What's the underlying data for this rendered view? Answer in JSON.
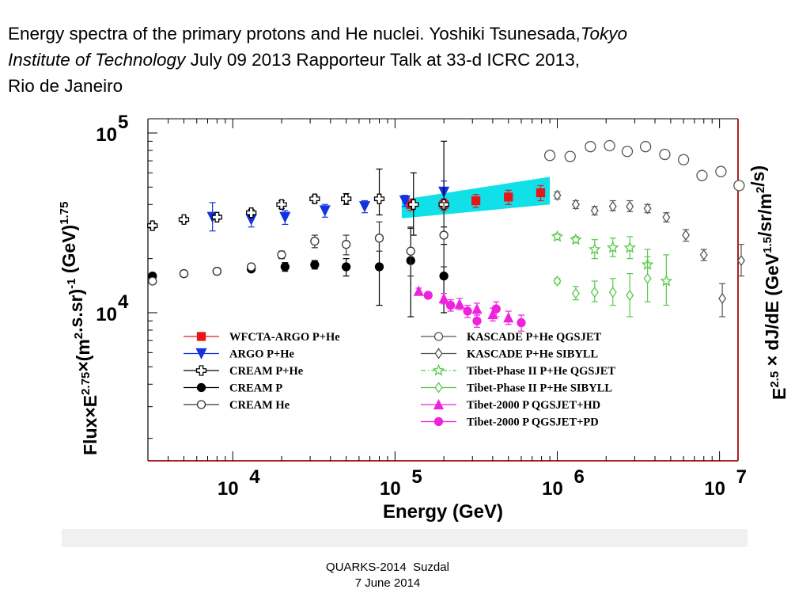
{
  "slide": {
    "title_part1": "Energy spectra of the primary protons and He nuclei. Yoshiki Tsunesada,",
    "title_italic1": "Tokyo",
    "title_italic2": "Institute of Technology",
    "title_part2": " July 09 2013 Rapporteur Talk at 33-d ICRC 2013,",
    "title_part3": "Rio de Janeiro",
    "footer_line1": "QUARKS-2014  Suzdal",
    "footer_line2": "7 June 2014"
  },
  "chart_data": {
    "type": "scatter",
    "x_scale": "log",
    "y_scale": "log",
    "xlim": [
      3000,
      13000000
    ],
    "ylim": [
      1500,
      120000
    ],
    "xlabel": "Energy (GeV)",
    "ylabel_left": "Flux×E^2.75×(m^2.s.sr)^-1 (GeV)^1.75",
    "ylabel_right": "E^2.5 × dJ/dE (GeV^1.5/sr/m^2/s)",
    "x_ticks": [
      {
        "value": 10000,
        "base": "10",
        "exp": "4"
      },
      {
        "value": 100000,
        "base": "10",
        "exp": "5"
      },
      {
        "value": 1000000,
        "base": "10",
        "exp": "6"
      },
      {
        "value": 10000000,
        "base": "10",
        "exp": "7"
      }
    ],
    "y_ticks": [
      {
        "value": 10000,
        "base": "10",
        "exp": "4"
      },
      {
        "value": 100000,
        "base": "10",
        "exp": "5"
      }
    ],
    "grid": false,
    "legend_position": "bottom-center",
    "colors": {
      "red": "#e8161b",
      "blue": "#1433e0",
      "black": "#000000",
      "gray": "#555555",
      "green": "#56c94a",
      "magenta": "#ee22dd",
      "cyan": "#10e0e8"
    },
    "band": {
      "name": "",
      "color": "#10e0e8",
      "x": [
        110000,
        900000
      ],
      "lower": [
        33500,
        40000
      ],
      "upper": [
        42500,
        57000
      ]
    },
    "series": [
      {
        "name": "WFCTA-ARGO P+He",
        "marker": "square",
        "filled": true,
        "color": "#e8161b",
        "points": [
          [
            125000,
            40000,
            3000,
            3000
          ],
          [
            200000,
            40000,
            3000,
            3000
          ],
          [
            315000,
            42000,
            3500,
            3500
          ],
          [
            500000,
            44000,
            4000,
            4000
          ],
          [
            790000,
            46500,
            4500,
            4500
          ]
        ]
      },
      {
        "name": "ARGO P+He",
        "marker": "triangle-down",
        "filled": true,
        "color": "#1433e0",
        "points": [
          [
            7500,
            34000,
            5500,
            7000
          ],
          [
            13000,
            33000,
            3000,
            3000
          ],
          [
            21000,
            34000,
            3000,
            3000
          ],
          [
            37000,
            37000,
            3000,
            3000
          ],
          [
            65000,
            39000,
            3000,
            3000
          ],
          [
            115000,
            42000,
            3000,
            3000
          ],
          [
            200000,
            47000,
            6000,
            7000
          ]
        ]
      },
      {
        "name": "CREAM P+He",
        "marker": "cross-open",
        "filled": false,
        "color": "#000000",
        "points": [
          [
            3200,
            30500,
            1000,
            1000
          ],
          [
            5000,
            33000,
            1000,
            1000
          ],
          [
            8000,
            34000,
            1000,
            1000
          ],
          [
            13000,
            36000,
            1500,
            1500
          ],
          [
            20000,
            40000,
            2000,
            2000
          ],
          [
            32000,
            43000,
            2000,
            2000
          ],
          [
            50000,
            43000,
            3000,
            3000
          ],
          [
            80000,
            43000,
            8000,
            20000
          ],
          [
            130000,
            40000,
            13000,
            20000
          ],
          [
            200000,
            40000,
            10000,
            50000
          ]
        ]
      },
      {
        "name": "CREAM P",
        "marker": "circle",
        "filled": true,
        "color": "#000000",
        "points": [
          [
            3200,
            16000,
            500,
            500
          ],
          [
            5000,
            16500,
            500,
            500
          ],
          [
            8000,
            17000,
            500,
            500
          ],
          [
            13000,
            17500,
            500,
            500
          ],
          [
            21000,
            18000,
            1000,
            1000
          ],
          [
            32000,
            18500,
            1000,
            1000
          ],
          [
            50000,
            18000,
            2000,
            2000
          ],
          [
            80000,
            18000,
            7000,
            7000
          ],
          [
            125000,
            19500,
            10000,
            10000
          ],
          [
            200000,
            16000,
            6000,
            8000
          ]
        ]
      },
      {
        "name": "CREAM He",
        "marker": "circle",
        "filled": false,
        "color": "#333333",
        "points": [
          [
            3200,
            15000,
            500,
            500
          ],
          [
            5000,
            16500,
            500,
            500
          ],
          [
            8000,
            17000,
            500,
            500
          ],
          [
            13000,
            18000,
            500,
            500
          ],
          [
            20000,
            21000,
            1000,
            1000
          ],
          [
            32000,
            25000,
            2000,
            2000
          ],
          [
            50000,
            24000,
            3000,
            3000
          ],
          [
            80000,
            26000,
            4000,
            6000
          ],
          [
            125000,
            22000,
            6000,
            8000
          ],
          [
            200000,
            27000,
            9000,
            14000
          ]
        ]
      },
      {
        "name": "KASCADE P+He QGSJET",
        "marker": "circle",
        "filled": false,
        "color": "#555555",
        "points": [
          [
            900000,
            75000,
            0,
            0
          ],
          [
            1200000,
            74000,
            0,
            0
          ],
          [
            1600000,
            84000,
            0,
            0
          ],
          [
            2100000,
            85000,
            0,
            0
          ],
          [
            2700000,
            79000,
            0,
            0
          ],
          [
            3500000,
            84000,
            0,
            0
          ],
          [
            4600000,
            76000,
            0,
            0
          ],
          [
            6000000,
            71000,
            0,
            0
          ],
          [
            7800000,
            58000,
            0,
            0
          ],
          [
            10200000,
            61000,
            0,
            0
          ],
          [
            13200000,
            51000,
            0,
            0
          ]
        ]
      },
      {
        "name": "KASCADE P+He SIBYLL",
        "marker": "diamond",
        "filled": false,
        "color": "#555555",
        "points": [
          [
            1000000,
            45000,
            2000,
            2000
          ],
          [
            1300000,
            40000,
            2000,
            2000
          ],
          [
            1700000,
            37000,
            2000,
            2000
          ],
          [
            2200000,
            39000,
            2000,
            3000
          ],
          [
            2800000,
            39000,
            2500,
            3000
          ],
          [
            3600000,
            38000,
            2000,
            2000
          ],
          [
            4700000,
            34000,
            2000,
            2000
          ],
          [
            6200000,
            27000,
            2000,
            2000
          ],
          [
            8000000,
            21000,
            1500,
            1500
          ],
          [
            10400000,
            12000,
            2500,
            2500
          ],
          [
            13600000,
            19500,
            3500,
            4500
          ]
        ]
      },
      {
        "name": "Tibet-Phase II P+He QGSJET",
        "marker": "star",
        "filled": false,
        "color": "#56c94a",
        "points": [
          [
            1000000,
            26500,
            1000,
            1000
          ],
          [
            1300000,
            25500,
            1000,
            1000
          ],
          [
            1700000,
            22500,
            2500,
            3000
          ],
          [
            2200000,
            23000,
            2500,
            3000
          ],
          [
            2800000,
            23000,
            3000,
            3500
          ],
          [
            3600000,
            18500,
            3000,
            4000
          ],
          [
            4700000,
            15000,
            4000,
            6000
          ]
        ]
      },
      {
        "name": "Tibet-Phase II P+He SIBYLL",
        "marker": "diamond",
        "filled": false,
        "color": "#56c94a",
        "points": [
          [
            1000000,
            15000,
            500,
            500
          ],
          [
            1300000,
            12800,
            1000,
            1200
          ],
          [
            1700000,
            13000,
            1500,
            2000
          ],
          [
            2200000,
            13000,
            2000,
            2500
          ],
          [
            2800000,
            12500,
            3000,
            4000
          ],
          [
            3600000,
            15500,
            4000,
            5000
          ]
        ]
      },
      {
        "name": "Tibet-2000 P QGSJET+HD",
        "marker": "triangle-up",
        "filled": true,
        "color": "#ee22dd",
        "points": [
          [
            140000,
            13200,
            500,
            500
          ],
          [
            200000,
            12000,
            800,
            800
          ],
          [
            250000,
            11200,
            800,
            800
          ],
          [
            320000,
            10500,
            800,
            800
          ],
          [
            400000,
            9800,
            800,
            800
          ],
          [
            500000,
            9400,
            800,
            800
          ]
        ]
      },
      {
        "name": "Tibet-2000 P QGSJET+PD",
        "marker": "circle",
        "filled": true,
        "color": "#ee22dd",
        "points": [
          [
            160000,
            12500,
            500,
            500
          ],
          [
            220000,
            11000,
            800,
            800
          ],
          [
            280000,
            10200,
            800,
            800
          ],
          [
            320000,
            9000,
            700,
            700
          ],
          [
            420000,
            10500,
            1000,
            1000
          ],
          [
            600000,
            8800,
            900,
            900
          ]
        ]
      }
    ]
  }
}
